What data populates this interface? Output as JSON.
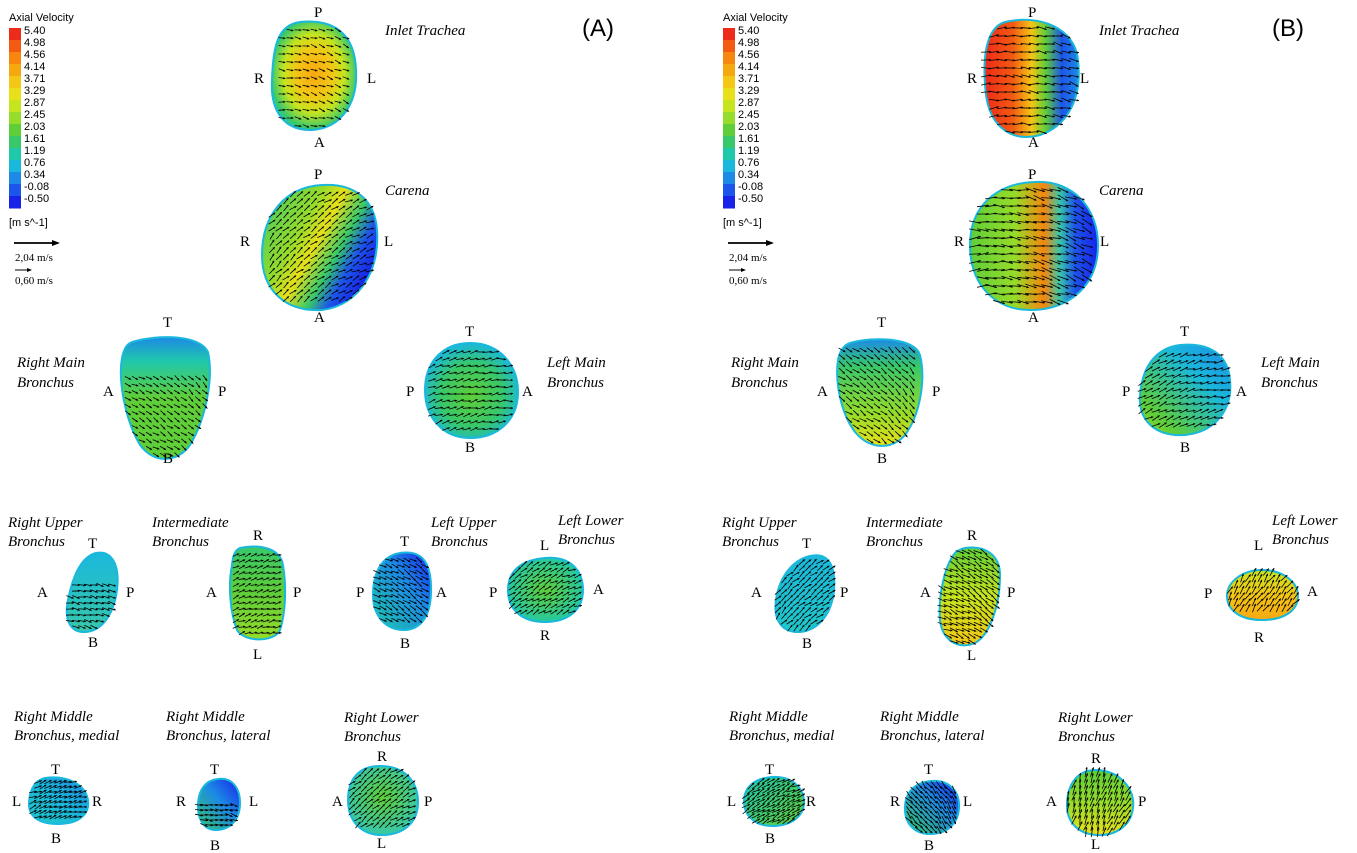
{
  "legend": {
    "title": "Axial Velocity",
    "unit": "[m s^-1]",
    "levels": [
      "5.40",
      "4.98",
      "4.56",
      "4.14",
      "3.71",
      "3.29",
      "2.87",
      "2.45",
      "2.03",
      "1.61",
      "1.19",
      "0.76",
      "0.34",
      "-0.08",
      "-0.50"
    ],
    "colors": [
      "#ee2a1a",
      "#f35a12",
      "#f6860e",
      "#f6a810",
      "#f4c615",
      "#e8e01a",
      "#c6e51f",
      "#96dc2a",
      "#5fce38",
      "#38c86a",
      "#20c8aa",
      "#1ab8dc",
      "#1c8ae6",
      "#1c55ea",
      "#1822e8"
    ],
    "vector_large": "2,04 m/s",
    "vector_small": "0,60 m/s"
  },
  "panels": [
    {
      "id": "A",
      "label": "(A)",
      "sections": {
        "inlet_trachea": {
          "name": "Inlet Trachea",
          "top": "P",
          "left": "R",
          "right": "L",
          "bottom": "A"
        },
        "carena": {
          "name": "Carena",
          "top": "P",
          "left": "R",
          "right": "L",
          "bottom": "A"
        },
        "right_main": {
          "name1": "Right Main",
          "name2": "Bronchus",
          "top": "T",
          "left": "A",
          "right": "P",
          "bottom": "B"
        },
        "left_main": {
          "name1": "Left Main",
          "name2": "Bronchus",
          "top": "T",
          "left": "P",
          "right": "A",
          "bottom": "B"
        },
        "right_upper": {
          "name1": "Right Upper",
          "name2": "Bronchus",
          "top": "T",
          "left": "A",
          "right": "P",
          "bottom": "B"
        },
        "intermediate": {
          "name1": "Intermediate",
          "name2": "Bronchus",
          "top": "R",
          "left": "A",
          "right": "P",
          "bottom": "L"
        },
        "left_upper": {
          "name1": "Left Upper",
          "name2": "Bronchus",
          "top": "T",
          "left": "P",
          "right": "A",
          "bottom": "B"
        },
        "left_lower": {
          "name1": "Left Lower",
          "name2": "Bronchus",
          "top": "L",
          "left": "P",
          "right": "A",
          "bottom": "R"
        },
        "rm_medial": {
          "name1": "Right Middle",
          "name2": "Bronchus, medial",
          "top": "T",
          "left": "L",
          "right": "R",
          "bottom": "B"
        },
        "rm_lateral": {
          "name1": "Right Middle",
          "name2": "Bronchus, lateral",
          "top": "T",
          "left": "R",
          "right": "L",
          "bottom": "B"
        },
        "right_lower": {
          "name1": "Right Lower",
          "name2": "Bronchus",
          "top": "R",
          "left": "A",
          "right": "P",
          "bottom": "L"
        }
      }
    },
    {
      "id": "B",
      "label": "(B)",
      "sections": {
        "inlet_trachea": {
          "name": "Inlet Trachea",
          "top": "P",
          "left": "R",
          "right": "L",
          "bottom": "A"
        },
        "carena": {
          "name": "Carena",
          "top": "P",
          "left": "R",
          "right": "L",
          "bottom": "A"
        },
        "right_main": {
          "name1": "Right Main",
          "name2": "Bronchus",
          "top": "T",
          "left": "A",
          "right": "P",
          "bottom": "B"
        },
        "left_main": {
          "name1": "Left Main",
          "name2": "Bronchus",
          "top": "T",
          "left": "P",
          "right": "A",
          "bottom": "B"
        },
        "right_upper": {
          "name1": "Right Upper",
          "name2": "Bronchus",
          "top": "T",
          "left": "A",
          "right": "P",
          "bottom": "B"
        },
        "intermediate": {
          "name1": "Intermediate",
          "name2": "Bronchus",
          "top": "R",
          "left": "A",
          "right": "P",
          "bottom": "L"
        },
        "left_lower": {
          "name1": "Left Lower",
          "name2": "Bronchus",
          "top": "L",
          "left": "P",
          "right": "A",
          "bottom": "R"
        },
        "rm_medial": {
          "name1": "Right Middle",
          "name2": "Bronchus, medial",
          "top": "T",
          "left": "L",
          "right": "R",
          "bottom": "B"
        },
        "rm_lateral": {
          "name1": "Right Middle",
          "name2": "Bronchus, lateral",
          "top": "T",
          "left": "R",
          "right": "L",
          "bottom": "B"
        },
        "right_lower": {
          "name1": "Right Lower",
          "name2": "Bronchus",
          "top": "R",
          "left": "A",
          "right": "P",
          "bottom": "L"
        }
      }
    }
  ]
}
